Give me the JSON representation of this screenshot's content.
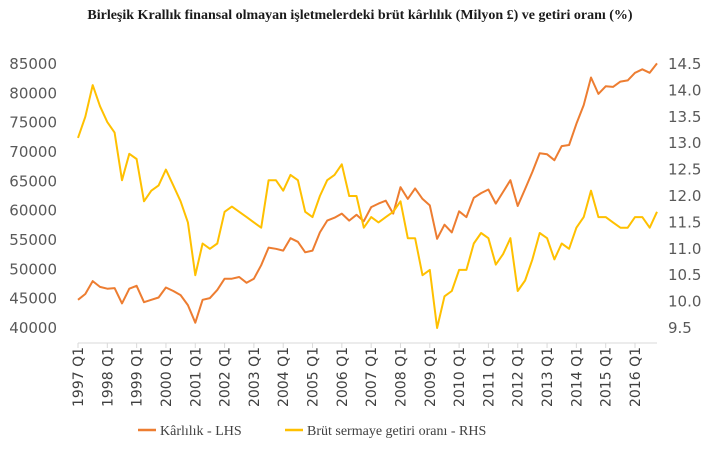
{
  "chart_data": {
    "type": "line",
    "title": "Birleşik Krallık finansal olmayan işletmelerdeki brüt kârlılık (Milyon £) ve getiri oranı (%)",
    "xlabel": "",
    "ylabel": "",
    "y_left_ticks": [
      "85000",
      "80000",
      "75000",
      "70000",
      "65000",
      "60000",
      "55000",
      "50000",
      "45000",
      "40000"
    ],
    "y_right_ticks": [
      "14.5",
      "14.0",
      "13.5",
      "13.0",
      "12.5",
      "12.0",
      "11.5",
      "11.0",
      "10.5",
      "10.0",
      "9.5"
    ],
    "y_left_lim": [
      40000,
      85000
    ],
    "y_right_lim": [
      9.5,
      14.5
    ],
    "x_tick_labels": [
      "1997 Q1",
      "1998 Q1",
      "1999 Q1",
      "2000 Q1",
      "2001 Q1",
      "2002 Q1",
      "2003 Q1",
      "2004 Q1",
      "2005 Q1",
      "2006 Q1",
      "2007 Q1",
      "2008 Q1",
      "2009 Q1",
      "2010 Q1",
      "2011 Q1",
      "2012 Q1",
      "2013 Q1",
      "2014 Q1",
      "2015 Q1",
      "2016 Q1"
    ],
    "grid": false,
    "legend_position": "bottom",
    "series": [
      {
        "name": "Kârlılık - LHS",
        "axis": "left",
        "color": "#ED7D31",
        "values": [
          44800,
          45800,
          48000,
          47000,
          46700,
          46800,
          44200,
          46700,
          47200,
          44400,
          44800,
          45200,
          46900,
          46300,
          45600,
          43900,
          40900,
          44800,
          45100,
          46500,
          48400,
          48400,
          48700,
          47700,
          48400,
          50700,
          53700,
          53500,
          53200,
          55300,
          54700,
          52900,
          53200,
          56300,
          58300,
          58800,
          59500,
          58300,
          59300,
          58200,
          60600,
          61200,
          61700,
          59500,
          64000,
          62000,
          63800,
          62000,
          60900,
          55200,
          57600,
          56300,
          59900,
          58900,
          62200,
          63000,
          63600,
          61200,
          63200,
          65200,
          60800,
          63700,
          66600,
          69800,
          69600,
          68600,
          71000,
          71200,
          74800,
          78000,
          82700,
          79900,
          81200,
          81100,
          82000,
          82200,
          83500,
          84100,
          83500,
          85100
        ]
      },
      {
        "name": "Brüt sermaye getiri oranı - RHS",
        "axis": "right",
        "color": "#FFC000",
        "values": [
          13.1,
          13.5,
          14.1,
          13.7,
          13.4,
          13.2,
          12.3,
          12.8,
          12.7,
          11.9,
          12.1,
          12.2,
          12.5,
          12.2,
          11.9,
          11.5,
          10.5,
          11.1,
          11.0,
          11.1,
          11.7,
          11.8,
          11.7,
          11.6,
          11.5,
          11.4,
          12.3,
          12.3,
          12.1,
          12.4,
          12.3,
          11.7,
          11.6,
          12.0,
          12.3,
          12.4,
          12.6,
          12.0,
          12.0,
          11.4,
          11.6,
          11.5,
          11.6,
          11.7,
          11.9,
          11.2,
          11.2,
          10.5,
          10.6,
          9.5,
          10.1,
          10.2,
          10.6,
          10.6,
          11.1,
          11.3,
          11.2,
          10.7,
          10.9,
          11.2,
          10.2,
          10.4,
          10.8,
          11.3,
          11.2,
          10.8,
          11.1,
          11.0,
          11.4,
          11.6,
          12.1,
          11.6,
          11.6,
          11.5,
          11.4,
          11.4,
          11.6,
          11.6,
          11.4,
          11.7
        ]
      }
    ]
  }
}
